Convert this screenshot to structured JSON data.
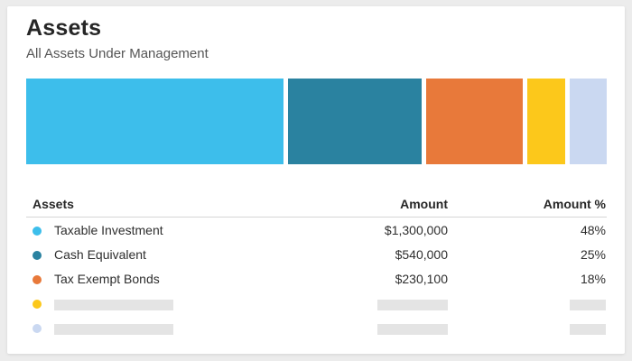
{
  "card": {
    "title": "Assets",
    "subtitle": "All Assets Under Management"
  },
  "allocation_bar": {
    "segments": [
      {
        "label": "Taxable Investment",
        "color": "#3dbeeb",
        "share": 0.48
      },
      {
        "label": "Cash Equivalent",
        "color": "#2a82a0",
        "share": 0.25
      },
      {
        "label": "Tax Exempt Bonds",
        "color": "#e8793a",
        "share": 0.18
      },
      {
        "label": "",
        "color": "#fcc81b",
        "share": 0.07
      },
      {
        "label": "",
        "color": "#cad8f1",
        "share": 0.07
      }
    ]
  },
  "table": {
    "headers": {
      "assets": "Assets",
      "amount": "Amount",
      "percent": "Amount %"
    },
    "rows": [
      {
        "name": "Taxable Investment",
        "amount": "$1,300,000",
        "percent": "48%",
        "color": "#3dbeeb"
      },
      {
        "name": "Cash Equivalent",
        "amount": "$540,000",
        "percent": "25%",
        "color": "#2a82a0"
      },
      {
        "name": "Tax Exempt Bonds",
        "amount": "$230,100",
        "percent": "18%",
        "color": "#e8793a"
      }
    ],
    "placeholder_rows": [
      {
        "color": "#fcc81b"
      },
      {
        "color": "#cad8f1"
      }
    ]
  }
}
